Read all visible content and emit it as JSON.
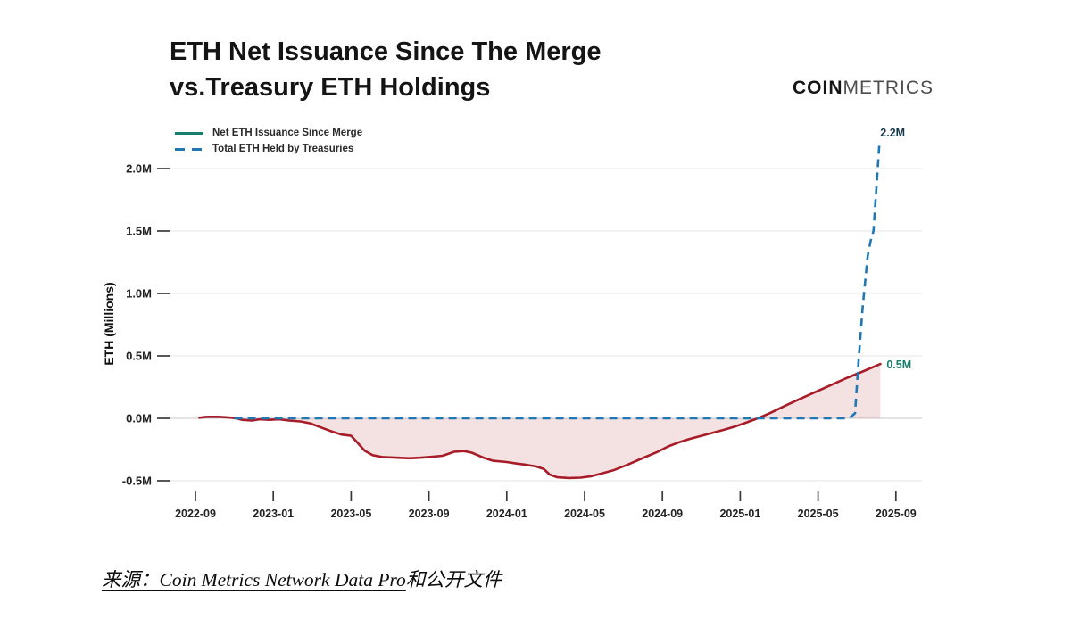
{
  "header": {
    "title_line1": "ETH Net Issuance Since The Merge",
    "title_line2": "vs.Treasury ETH Holdings",
    "logo_bold": "COIN",
    "logo_light": "METRICS"
  },
  "legend": {
    "items": [
      {
        "label": "Net ETH Issuance Since Merge",
        "color": "#177e6e",
        "style": "solid"
      },
      {
        "label": "Total ETH Held by Treasuries",
        "color": "#1f77b4",
        "style": "dashed"
      }
    ]
  },
  "footer": {
    "source_underlined": "来源：Coin Metrics Network Data Pro",
    "source_rest": "和公开文件"
  },
  "chart_data": {
    "type": "line",
    "title": "ETH Net Issuance Since The Merge vs.Treasury ETH Holdings",
    "xlabel": "",
    "ylabel": "ETH (Millions)",
    "x_unit": "months since 2022-09",
    "ylim": [
      -0.6,
      2.3
    ],
    "grid": true,
    "legend_position": "top-left",
    "x_ticks": [
      {
        "label": "2022-09",
        "m": 0
      },
      {
        "label": "2023-01",
        "m": 4
      },
      {
        "label": "2023-05",
        "m": 8
      },
      {
        "label": "2023-09",
        "m": 12
      },
      {
        "label": "2024-01",
        "m": 16
      },
      {
        "label": "2024-05",
        "m": 20
      },
      {
        "label": "2024-09",
        "m": 24
      },
      {
        "label": "2025-01",
        "m": 28
      },
      {
        "label": "2025-05",
        "m": 32
      },
      {
        "label": "2025-09",
        "m": 36
      }
    ],
    "y_ticks": [
      {
        "label": "2.0M",
        "value": 2.0
      },
      {
        "label": "1.5M",
        "value": 1.5
      },
      {
        "label": "1.0M",
        "value": 1.0
      },
      {
        "label": "0.5M",
        "value": 0.5
      },
      {
        "label": "0.0M",
        "value": 0.0
      },
      {
        "label": "-0.5M",
        "value": -0.5
      }
    ],
    "series": [
      {
        "name": "Net ETH Issuance Since Merge",
        "style": "solid-areasplit",
        "color_positive": "#177e6e",
        "color_negative": "#a81c28",
        "fill_positive": "rgba(23,126,110,0.10)",
        "fill_negative": "rgba(168,28,40,0.13)",
        "end_label": "0.5M",
        "points": [
          [
            0.2,
            0.005
          ],
          [
            0.6,
            0.012
          ],
          [
            1.2,
            0.012
          ],
          [
            1.8,
            0.006
          ],
          [
            2.1,
            0.0
          ],
          [
            2.4,
            -0.012
          ],
          [
            2.9,
            -0.018
          ],
          [
            3.3,
            -0.008
          ],
          [
            3.8,
            -0.012
          ],
          [
            4.3,
            -0.008
          ],
          [
            4.8,
            -0.018
          ],
          [
            5.4,
            -0.025
          ],
          [
            5.9,
            -0.04
          ],
          [
            6.4,
            -0.07
          ],
          [
            7.0,
            -0.105
          ],
          [
            7.5,
            -0.13
          ],
          [
            8.0,
            -0.14
          ],
          [
            8.3,
            -0.19
          ],
          [
            8.7,
            -0.26
          ],
          [
            9.1,
            -0.295
          ],
          [
            9.6,
            -0.31
          ],
          [
            10.3,
            -0.315
          ],
          [
            11.0,
            -0.32
          ],
          [
            11.6,
            -0.315
          ],
          [
            12.0,
            -0.31
          ],
          [
            12.7,
            -0.3
          ],
          [
            13.3,
            -0.268
          ],
          [
            13.8,
            -0.262
          ],
          [
            14.2,
            -0.275
          ],
          [
            14.8,
            -0.315
          ],
          [
            15.3,
            -0.34
          ],
          [
            16.0,
            -0.35
          ],
          [
            16.5,
            -0.362
          ],
          [
            17.0,
            -0.372
          ],
          [
            17.5,
            -0.385
          ],
          [
            17.9,
            -0.405
          ],
          [
            18.2,
            -0.45
          ],
          [
            18.6,
            -0.472
          ],
          [
            19.2,
            -0.478
          ],
          [
            19.8,
            -0.475
          ],
          [
            20.3,
            -0.465
          ],
          [
            20.8,
            -0.445
          ],
          [
            21.5,
            -0.415
          ],
          [
            22.2,
            -0.372
          ],
          [
            23.0,
            -0.318
          ],
          [
            23.7,
            -0.272
          ],
          [
            24.3,
            -0.225
          ],
          [
            24.8,
            -0.195
          ],
          [
            25.4,
            -0.165
          ],
          [
            26.0,
            -0.14
          ],
          [
            26.6,
            -0.115
          ],
          [
            27.2,
            -0.09
          ],
          [
            27.8,
            -0.062
          ],
          [
            28.3,
            -0.035
          ],
          [
            28.9,
            0.0
          ],
          [
            29.5,
            0.04
          ],
          [
            30.5,
            0.115
          ],
          [
            31.5,
            0.185
          ],
          [
            32.5,
            0.255
          ],
          [
            33.5,
            0.325
          ],
          [
            34.3,
            0.375
          ],
          [
            35.2,
            0.435
          ]
        ]
      },
      {
        "name": "Total ETH Held by Treasuries",
        "style": "dashed",
        "color": "#1f77b4",
        "end_label": "2.2M",
        "end_label_color": "#14384d",
        "points": [
          [
            2.0,
            0.0
          ],
          [
            10.0,
            0.0
          ],
          [
            20.0,
            0.0
          ],
          [
            30.0,
            0.0
          ],
          [
            33.6,
            0.0
          ],
          [
            33.9,
            0.04
          ],
          [
            34.1,
            0.5
          ],
          [
            34.3,
            0.9
          ],
          [
            34.55,
            1.3
          ],
          [
            34.7,
            1.42
          ],
          [
            34.85,
            1.5
          ],
          [
            35.0,
            1.85
          ],
          [
            35.15,
            2.2
          ]
        ]
      }
    ]
  }
}
